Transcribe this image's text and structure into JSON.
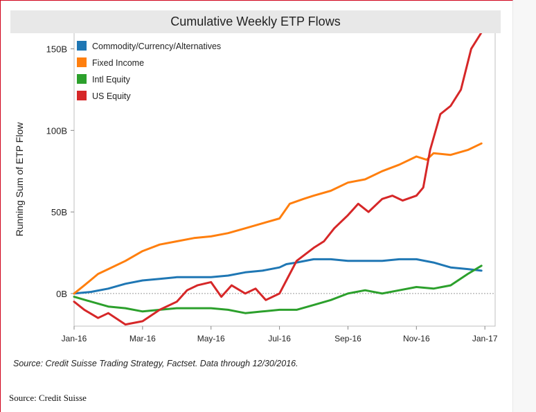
{
  "chart_data": {
    "type": "line",
    "title": "Cumulative Weekly ETP Flows",
    "ylabel": "Running Sum of ETP Flow",
    "xlabel": "",
    "x_tick_labels": [
      "Jan-16",
      "Mar-16",
      "May-16",
      "Jul-16",
      "Sep-16",
      "Nov-16",
      "Jan-17"
    ],
    "y_tick_labels": [
      "0B",
      "50B",
      "100B",
      "150B"
    ],
    "y_tick_values": [
      0,
      50,
      100,
      150
    ],
    "ylim": [
      -20,
      160
    ],
    "xlim": [
      0,
      12.3
    ],
    "legend_position": "top-left",
    "grid": false,
    "zero_line": true,
    "series": [
      {
        "name": "Commodity/Currency/Alternatives",
        "color": "#1f77b4",
        "x": [
          0,
          0.5,
          1,
          1.5,
          2,
          2.5,
          3,
          3.5,
          4,
          4.5,
          5,
          5.5,
          6,
          6.2,
          6.5,
          7,
          7.5,
          8,
          8.5,
          9,
          9.5,
          10,
          10.5,
          11,
          11.5,
          11.9
        ],
        "y": [
          0,
          1,
          3,
          6,
          8,
          9,
          10,
          10,
          10,
          11,
          13,
          14,
          16,
          18,
          19,
          21,
          21,
          20,
          20,
          20,
          21,
          21,
          19,
          16,
          15,
          14
        ]
      },
      {
        "name": "Fixed Income",
        "color": "#ff7f0e",
        "x": [
          0,
          0.3,
          0.7,
          1,
          1.5,
          2,
          2.5,
          3,
          3.5,
          4,
          4.5,
          5,
          5.5,
          6,
          6.3,
          6.7,
          7,
          7.5,
          8,
          8.5,
          9,
          9.5,
          10,
          10.3,
          10.5,
          11,
          11.5,
          11.9
        ],
        "y": [
          0,
          5,
          12,
          15,
          20,
          26,
          30,
          32,
          34,
          35,
          37,
          40,
          43,
          46,
          55,
          58,
          60,
          63,
          68,
          70,
          75,
          79,
          84,
          82,
          86,
          85,
          88,
          92
        ]
      },
      {
        "name": "Intl Equity",
        "color": "#2ca02c",
        "x": [
          0,
          0.5,
          1,
          1.5,
          2,
          2.5,
          3,
          3.5,
          4,
          4.5,
          5,
          5.5,
          6,
          6.5,
          7,
          7.5,
          8,
          8.5,
          9,
          9.5,
          10,
          10.5,
          11,
          11.5,
          11.9
        ],
        "y": [
          -2,
          -5,
          -8,
          -9,
          -11,
          -10,
          -9,
          -9,
          -9,
          -10,
          -12,
          -11,
          -10,
          -10,
          -7,
          -4,
          0,
          2,
          0,
          2,
          4,
          3,
          5,
          12,
          17
        ]
      },
      {
        "name": "US Equity",
        "color": "#d62728",
        "x": [
          0,
          0.3,
          0.7,
          1,
          1.5,
          2,
          2.5,
          3,
          3.3,
          3.6,
          4,
          4.3,
          4.6,
          5,
          5.3,
          5.6,
          6,
          6.2,
          6.5,
          7,
          7.3,
          7.6,
          8,
          8.3,
          8.6,
          9,
          9.3,
          9.6,
          10,
          10.2,
          10.4,
          10.7,
          11,
          11.3,
          11.6,
          11.9
        ],
        "y": [
          -5,
          -10,
          -15,
          -12,
          -19,
          -17,
          -10,
          -5,
          2,
          5,
          7,
          -2,
          5,
          0,
          3,
          -4,
          0,
          8,
          20,
          28,
          32,
          40,
          48,
          55,
          50,
          58,
          60,
          57,
          60,
          65,
          88,
          110,
          115,
          125,
          150,
          160
        ]
      }
    ]
  },
  "footer": {
    "source_note": "Source: Credit Suisse Trading Strategy, Factset.  Data through 12/30/2016.",
    "credit": "Source: Credit Suisse"
  }
}
